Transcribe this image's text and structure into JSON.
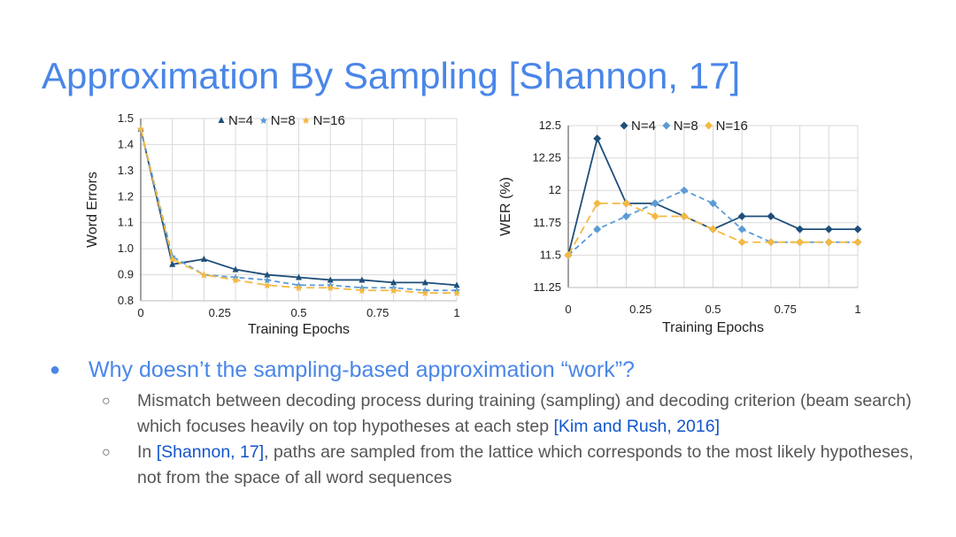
{
  "slide": {
    "title": "Approximation By Sampling [Shannon, 17]",
    "bullet_marker": "●",
    "bullet": "Why doesn’t the sampling-based approximation “work”?",
    "sub_marker": "○",
    "sub1": {
      "text": "Mismatch between decoding process during training (sampling) and decoding criterion (beam search) which focuses heavily on top hypotheses at each step ",
      "citation": "[Kim and Rush, 2016]"
    },
    "sub2": {
      "prefix": "In ",
      "citation": "[Shannon, 17]",
      "text": ", paths are sampled from the lattice which corresponds to the most likely hypotheses, not from the space of all word sequences"
    }
  },
  "colors": {
    "title": "#4a86e8",
    "citation": "#1155cc",
    "n4": "#1f4e79",
    "n8": "#5b9bd5",
    "n16": "#f4b942"
  },
  "chart_data": [
    {
      "type": "line",
      "xlabel": "Training Epochs",
      "ylabel": "Word Errors",
      "xlim": [
        0,
        1
      ],
      "ylim": [
        0.8,
        1.5
      ],
      "xticks": [
        "0",
        "0.25",
        "0.5",
        "0.75",
        "1"
      ],
      "yticks": [
        "0.8",
        "0.9",
        "1.0",
        "1.1",
        "1.2",
        "1.3",
        "1.4",
        "1.5"
      ],
      "grid": true,
      "legend_position": "top",
      "x": [
        0,
        0.1,
        0.2,
        0.3,
        0.4,
        0.5,
        0.6,
        0.7,
        0.8,
        0.9,
        1.0
      ],
      "series": [
        {
          "name": "N=4",
          "marker": "triangle",
          "values": [
            1.46,
            0.94,
            0.96,
            0.92,
            0.9,
            0.89,
            0.88,
            0.88,
            0.87,
            0.87,
            0.86
          ]
        },
        {
          "name": "N=8",
          "marker": "star",
          "values": [
            1.46,
            0.97,
            0.9,
            0.89,
            0.88,
            0.86,
            0.86,
            0.85,
            0.85,
            0.84,
            0.84
          ]
        },
        {
          "name": "N=16",
          "marker": "star",
          "values": [
            1.46,
            0.96,
            0.9,
            0.88,
            0.86,
            0.85,
            0.85,
            0.84,
            0.84,
            0.83,
            0.83
          ]
        }
      ]
    },
    {
      "type": "line",
      "xlabel": "Training Epochs",
      "ylabel": "WER (%)",
      "xlim": [
        0,
        1
      ],
      "ylim": [
        11.25,
        12.5
      ],
      "xticks": [
        "0",
        "0.25",
        "0.5",
        "0.75",
        "1"
      ],
      "yticks": [
        "11.25",
        "11.5",
        "11.75",
        "12",
        "12.25",
        "12.5"
      ],
      "grid": true,
      "legend_position": "top",
      "x": [
        0,
        0.1,
        0.2,
        0.3,
        0.4,
        0.5,
        0.6,
        0.7,
        0.8,
        0.9,
        1.0
      ],
      "series": [
        {
          "name": "N=4",
          "marker": "diamond",
          "values": [
            11.5,
            12.4,
            11.9,
            11.9,
            11.8,
            11.7,
            11.8,
            11.8,
            11.7,
            11.7,
            11.7
          ]
        },
        {
          "name": "N=8",
          "marker": "diamond",
          "values": [
            11.5,
            11.7,
            11.8,
            11.9,
            12.0,
            11.9,
            11.7,
            11.6,
            11.6,
            11.6,
            11.6
          ]
        },
        {
          "name": "N=16",
          "marker": "diamond",
          "values": [
            11.5,
            11.9,
            11.9,
            11.8,
            11.8,
            11.7,
            11.6,
            11.6,
            11.6,
            11.6,
            11.6
          ]
        }
      ]
    }
  ]
}
